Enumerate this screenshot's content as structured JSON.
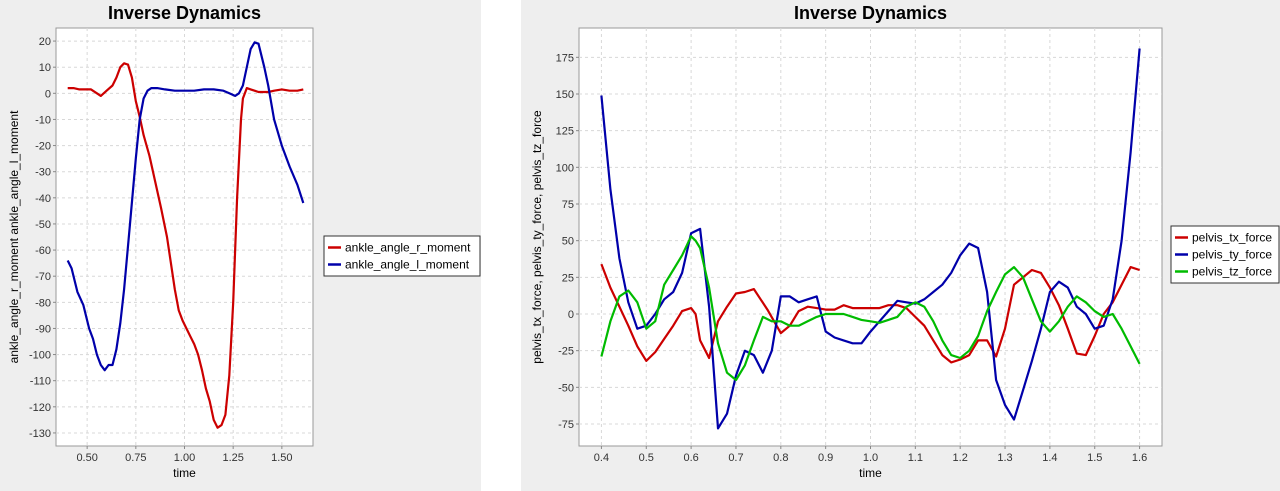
{
  "chart_data": [
    {
      "type": "line",
      "title": "Inverse Dynamics",
      "xlabel": "time",
      "ylabel": "ankle_angle_r_moment ankle_angle_l_moment",
      "xlim": [
        0.34,
        1.66
      ],
      "ylim": [
        -135,
        25
      ],
      "xticks": [
        0.5,
        0.75,
        1.0,
        1.25,
        1.5
      ],
      "xtick_labels": [
        "0.50",
        "0.75",
        "1.00",
        "1.25",
        "1.50"
      ],
      "yticks": [
        -130,
        -120,
        -110,
        -100,
        -90,
        -80,
        -70,
        -60,
        -50,
        -40,
        -30,
        -20,
        -10,
        0,
        10,
        20
      ],
      "ytick_labels": [
        "-130",
        "-120",
        "-110",
        "-100",
        "-90",
        "-80",
        "-70",
        "-60",
        "-50",
        "-40",
        "-30",
        "-20",
        "-10",
        "0",
        "10",
        "20"
      ],
      "grid": true,
      "legend_position": "right",
      "series": [
        {
          "name": "ankle_angle_r_moment",
          "color": "#cc0000",
          "x": [
            0.4,
            0.43,
            0.46,
            0.49,
            0.52,
            0.55,
            0.57,
            0.6,
            0.63,
            0.65,
            0.67,
            0.69,
            0.71,
            0.73,
            0.75,
            0.77,
            0.79,
            0.82,
            0.85,
            0.88,
            0.91,
            0.93,
            0.95,
            0.97,
            0.99,
            1.01,
            1.03,
            1.05,
            1.07,
            1.09,
            1.11,
            1.13,
            1.15,
            1.17,
            1.19,
            1.21,
            1.23,
            1.25,
            1.27,
            1.29,
            1.3,
            1.32,
            1.34,
            1.36,
            1.38,
            1.4,
            1.43,
            1.46,
            1.5,
            1.54,
            1.58,
            1.61
          ],
          "y": [
            2,
            2,
            1.5,
            1.5,
            1.5,
            0,
            -1,
            1,
            3,
            6,
            10,
            11.5,
            11,
            6,
            -3,
            -9,
            -16,
            -24,
            -34,
            -44,
            -55,
            -65,
            -75,
            -83,
            -87,
            -90,
            -93,
            -96,
            -100,
            -106,
            -113,
            -118,
            -125,
            -128,
            -127,
            -123,
            -108,
            -80,
            -40,
            -10,
            -2,
            2,
            1.5,
            1,
            0.5,
            0.5,
            0.5,
            1,
            1.5,
            1,
            1,
            1.5
          ]
        },
        {
          "name": "ankle_angle_l_moment",
          "color": "#0000aa",
          "x": [
            0.4,
            0.42,
            0.45,
            0.48,
            0.51,
            0.53,
            0.55,
            0.57,
            0.59,
            0.61,
            0.63,
            0.65,
            0.67,
            0.69,
            0.72,
            0.75,
            0.77,
            0.79,
            0.81,
            0.83,
            0.86,
            0.9,
            0.95,
            1.0,
            1.05,
            1.1,
            1.15,
            1.2,
            1.23,
            1.26,
            1.28,
            1.3,
            1.32,
            1.34,
            1.36,
            1.38,
            1.41,
            1.43,
            1.46,
            1.5,
            1.54,
            1.58,
            1.61
          ],
          "y": [
            -64,
            -67,
            -76,
            -81,
            -90,
            -94,
            -100,
            -104,
            -106,
            -104,
            -104,
            -98,
            -88,
            -75,
            -50,
            -25,
            -10,
            -2,
            1,
            2,
            2,
            1.5,
            1,
            1,
            1,
            1.5,
            1.5,
            1,
            0,
            -1,
            0,
            3,
            10,
            17,
            19.5,
            19,
            10,
            3,
            -10,
            -20,
            -28,
            -35,
            -42
          ]
        }
      ]
    },
    {
      "type": "line",
      "title": "Inverse Dynamics",
      "xlabel": "time",
      "ylabel": "pelvis_tx_force, pelvis_ty_force, pelvis_tz_force",
      "xlim": [
        0.35,
        1.65
      ],
      "ylim": [
        -90,
        195
      ],
      "xticks": [
        0.4,
        0.5,
        0.6,
        0.7,
        0.8,
        0.9,
        1.0,
        1.1,
        1.2,
        1.3,
        1.4,
        1.5,
        1.6
      ],
      "xtick_labels": [
        "0.4",
        "0.5",
        "0.6",
        "0.7",
        "0.8",
        "0.9",
        "1.0",
        "1.1",
        "1.2",
        "1.3",
        "1.4",
        "1.5",
        "1.6"
      ],
      "yticks": [
        -75,
        -50,
        -25,
        0,
        25,
        50,
        75,
        100,
        125,
        150,
        175
      ],
      "ytick_labels": [
        "-75",
        "-50",
        "-25",
        "0",
        "25",
        "50",
        "75",
        "100",
        "125",
        "150",
        "175"
      ],
      "grid": true,
      "legend_position": "right",
      "series": [
        {
          "name": "pelvis_tx_force",
          "color": "#cc0000",
          "x": [
            0.4,
            0.42,
            0.44,
            0.46,
            0.48,
            0.5,
            0.52,
            0.54,
            0.56,
            0.58,
            0.6,
            0.61,
            0.62,
            0.64,
            0.66,
            0.68,
            0.7,
            0.72,
            0.74,
            0.755,
            0.77,
            0.785,
            0.8,
            0.82,
            0.84,
            0.86,
            0.88,
            0.9,
            0.92,
            0.94,
            0.96,
            0.98,
            1.0,
            1.02,
            1.04,
            1.06,
            1.08,
            1.1,
            1.12,
            1.14,
            1.16,
            1.18,
            1.2,
            1.22,
            1.24,
            1.26,
            1.28,
            1.3,
            1.32,
            1.34,
            1.36,
            1.38,
            1.4,
            1.42,
            1.44,
            1.46,
            1.48,
            1.5,
            1.52,
            1.54,
            1.56,
            1.58,
            1.6
          ],
          "y": [
            34,
            18,
            5,
            -8,
            -22,
            -32,
            -26,
            -17,
            -8,
            2,
            4,
            0,
            -18,
            -30,
            -5,
            5,
            14,
            15,
            17,
            10,
            3,
            -5,
            -13,
            -8,
            2,
            5,
            4,
            3,
            3,
            6,
            4,
            4,
            4,
            4,
            6,
            6,
            4,
            -2,
            -8,
            -18,
            -28,
            -33,
            -31,
            -28,
            -18,
            -18,
            -29,
            -10,
            20,
            25,
            30,
            28,
            18,
            6,
            -10,
            -27,
            -28,
            -15,
            0,
            8,
            20,
            32,
            30
          ]
        },
        {
          "name": "pelvis_ty_force",
          "color": "#0000aa",
          "x": [
            0.4,
            0.42,
            0.44,
            0.46,
            0.48,
            0.5,
            0.52,
            0.54,
            0.56,
            0.58,
            0.6,
            0.62,
            0.64,
            0.66,
            0.68,
            0.7,
            0.72,
            0.74,
            0.76,
            0.78,
            0.8,
            0.82,
            0.84,
            0.86,
            0.88,
            0.9,
            0.92,
            0.94,
            0.96,
            0.98,
            1.0,
            1.02,
            1.04,
            1.06,
            1.08,
            1.1,
            1.12,
            1.14,
            1.16,
            1.18,
            1.2,
            1.22,
            1.24,
            1.26,
            1.28,
            1.3,
            1.32,
            1.34,
            1.36,
            1.38,
            1.4,
            1.42,
            1.44,
            1.46,
            1.48,
            1.5,
            1.52,
            1.54,
            1.56,
            1.58,
            1.6
          ],
          "y": [
            149,
            85,
            38,
            8,
            -10,
            -8,
            0,
            10,
            15,
            28,
            55,
            58,
            5,
            -78,
            -68,
            -42,
            -25,
            -28,
            -40,
            -25,
            12,
            12,
            8,
            10,
            12,
            -12,
            -16,
            -18,
            -20,
            -20,
            -12,
            -5,
            2,
            9,
            8,
            7,
            10,
            15,
            20,
            28,
            40,
            48,
            45,
            15,
            -45,
            -62,
            -72,
            -52,
            -32,
            -10,
            15,
            22,
            18,
            5,
            0,
            -10,
            -8,
            10,
            50,
            110,
            181
          ]
        },
        {
          "name": "pelvis_tz_force",
          "color": "#00bb00",
          "x": [
            0.4,
            0.42,
            0.44,
            0.46,
            0.48,
            0.5,
            0.52,
            0.54,
            0.56,
            0.58,
            0.6,
            0.61,
            0.62,
            0.64,
            0.66,
            0.68,
            0.7,
            0.72,
            0.74,
            0.76,
            0.78,
            0.8,
            0.82,
            0.84,
            0.86,
            0.88,
            0.9,
            0.92,
            0.94,
            0.96,
            0.98,
            1.0,
            1.02,
            1.04,
            1.06,
            1.08,
            1.1,
            1.12,
            1.14,
            1.16,
            1.18,
            1.2,
            1.22,
            1.24,
            1.26,
            1.28,
            1.3,
            1.32,
            1.34,
            1.36,
            1.38,
            1.4,
            1.42,
            1.44,
            1.46,
            1.48,
            1.5,
            1.52,
            1.54,
            1.56,
            1.58,
            1.6
          ],
          "y": [
            -29,
            -5,
            12,
            16,
            8,
            -10,
            -5,
            20,
            30,
            40,
            53,
            50,
            45,
            18,
            -20,
            -40,
            -45,
            -35,
            -18,
            -2,
            -5,
            -5,
            -8,
            -8,
            -5,
            -2,
            0,
            0,
            0,
            -2,
            -4,
            -5,
            -6,
            -4,
            -2,
            5,
            8,
            5,
            -5,
            -18,
            -28,
            -30,
            -25,
            -15,
            2,
            15,
            27,
            32,
            25,
            10,
            -5,
            -12,
            -5,
            5,
            12,
            8,
            2,
            -2,
            0,
            -10,
            -22,
            -34
          ]
        }
      ]
    }
  ]
}
